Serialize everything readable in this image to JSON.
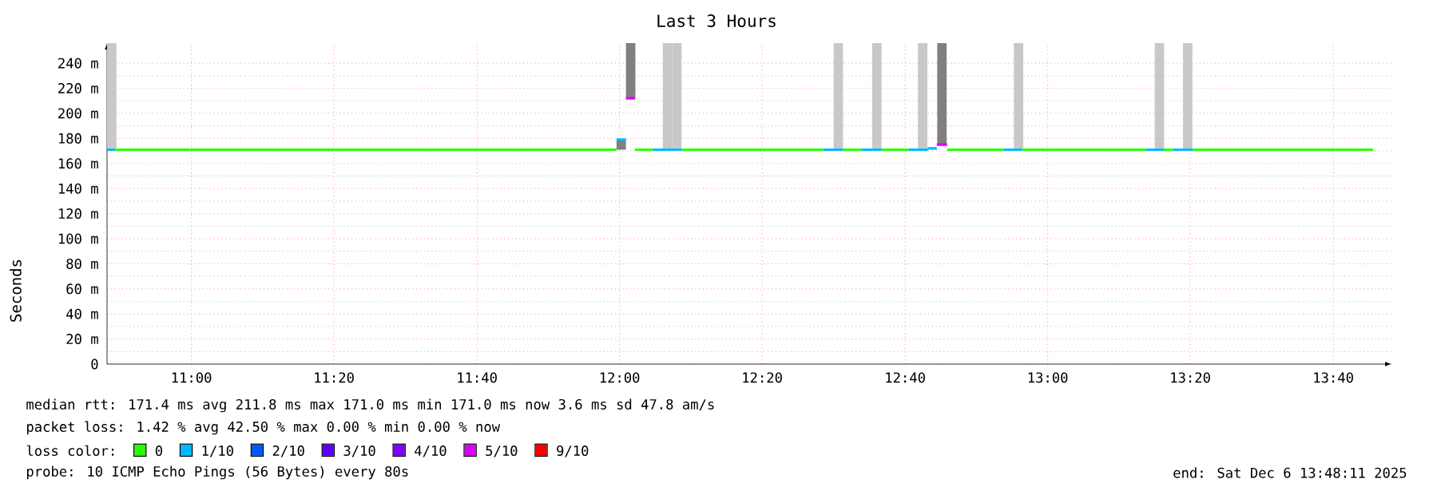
{
  "chart_data": {
    "type": "line",
    "title": "Last 3 Hours",
    "ylabel": "Seconds",
    "xlim": [
      10.803,
      13.803
    ],
    "xticks": [
      {
        "value": 11,
        "label": "11:00"
      },
      {
        "value": 11.333,
        "label": "11:20"
      },
      {
        "value": 11.667,
        "label": "11:40"
      },
      {
        "value": 12,
        "label": "12:00"
      },
      {
        "value": 12.333,
        "label": "12:20"
      },
      {
        "value": 12.667,
        "label": "12:40"
      },
      {
        "value": 13,
        "label": "13:00"
      },
      {
        "value": 13.333,
        "label": "13:20"
      },
      {
        "value": 13.667,
        "label": "13:40"
      }
    ],
    "ylim": [
      0,
      256
    ],
    "yticks": [
      0,
      {
        "value": 20,
        "label": "20 m"
      },
      {
        "value": 40,
        "label": "40 m"
      },
      {
        "value": 60,
        "label": "60 m"
      },
      {
        "value": 80,
        "label": "80 m"
      },
      {
        "value": 100,
        "label": "100 m"
      },
      {
        "value": 120,
        "label": "120 m"
      },
      {
        "value": 140,
        "label": "140 m"
      },
      {
        "value": 160,
        "label": "160 m"
      },
      {
        "value": 180,
        "label": "180 m"
      },
      {
        "value": 200,
        "label": "200 m"
      },
      {
        "value": 220,
        "label": "220 m"
      },
      {
        "value": 240,
        "label": "240 m"
      }
    ],
    "grid": true,
    "legend": "bottom",
    "legend_title": "loss color:",
    "series": [
      {
        "type": "bar",
        "x": [
          10.814,
          12.004,
          12.026,
          12.112,
          12.134,
          12.511,
          12.601,
          12.708,
          12.753,
          12.932,
          13.261,
          13.327
        ],
        "base": [
          171,
          171,
          212,
          171,
          171,
          171,
          171,
          171,
          175,
          171,
          171,
          171
        ],
        "values": [
          85,
          8,
          44,
          85,
          85,
          85,
          85,
          85,
          81,
          85,
          85,
          85
        ],
        "colors": [
          "#c8c8c8",
          "#808080",
          "#808080",
          "#c8c8c8",
          "#c8c8c8",
          "#c8c8c8",
          "#c8c8c8",
          "#c8c8c8",
          "#808080",
          "#c8c8c8",
          "#c8c8c8",
          "#c8c8c8"
        ]
      },
      {
        "name": "0",
        "color": "#26ff00",
        "x": [
          10.821,
          11.993,
          12.036,
          12.078,
          12.145,
          12.476,
          12.521,
          12.566,
          12.611,
          12.675,
          12.765,
          12.898,
          12.94,
          13.23,
          13.271,
          13.293,
          13.338,
          13.76
        ],
        "values": [
          171,
          171,
          171,
          171,
          171,
          171,
          171,
          171,
          171,
          171,
          171,
          171,
          171,
          171,
          171,
          171,
          171,
          171
        ]
      },
      {
        "name": "1/10",
        "color": "#00b8ff",
        "x": [
          10.803,
          10.821,
          11.993,
          12.015,
          12.078,
          12.145,
          12.476,
          12.521,
          12.566,
          12.611,
          12.675,
          12.72,
          12.72,
          12.741,
          12.898,
          12.94,
          13.23,
          13.271,
          13.293,
          13.338
        ],
        "values": [
          171,
          171,
          179,
          179,
          171,
          171,
          171,
          171,
          171,
          171,
          171,
          171,
          172,
          172,
          171,
          171,
          171,
          171,
          171,
          171
        ]
      },
      {
        "name": "2/10",
        "color": "#0059ff"
      },
      {
        "name": "3/10",
        "color": "#5e00ff"
      },
      {
        "name": "4/10",
        "color": "#7e00ff"
      },
      {
        "name": "5/10",
        "color": "#dd00ff",
        "x": [
          12.015,
          12.036,
          12.741,
          12.765
        ],
        "values": [
          212,
          212,
          175,
          175
        ]
      },
      {
        "name": "9/10",
        "color": "#ff0000"
      }
    ],
    "annotations": [
      "median rtt: 171.4 ms avg 211.8 ms max 171.0 ms min 171.0 ms now 3.6 ms sd 47.8 am/s",
      "packet loss: 1.42 % avg 42.50 % max 0.00 % min 0.00 % now",
      "probe: 10 ICMP Echo Pings (56 Bytes) every 80s",
      "end: Sat Dec 6 13:48:11 2025"
    ]
  }
}
